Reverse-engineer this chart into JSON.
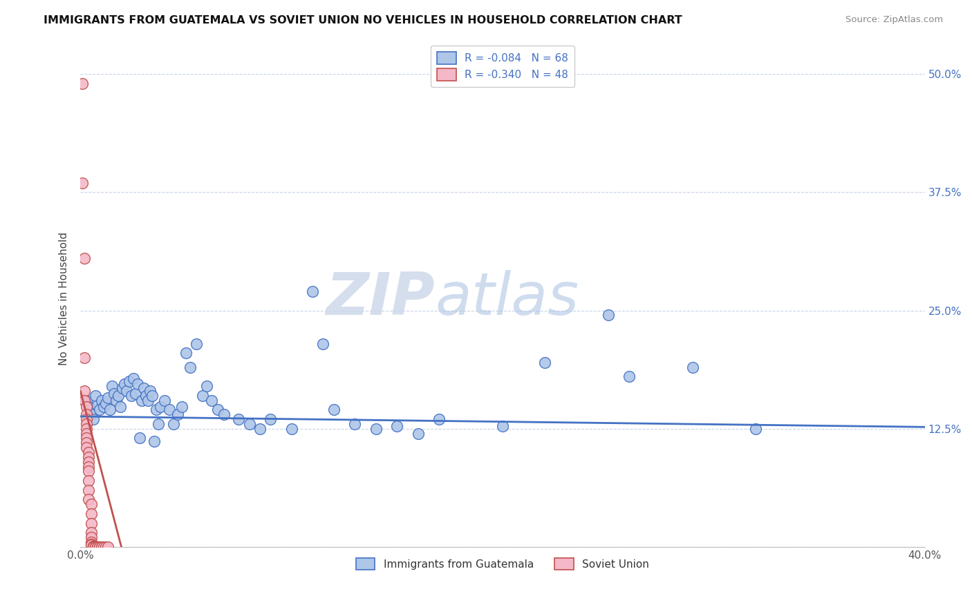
{
  "title": "IMMIGRANTS FROM GUATEMALA VS SOVIET UNION NO VEHICLES IN HOUSEHOLD CORRELATION CHART",
  "source": "Source: ZipAtlas.com",
  "ylabel": "No Vehicles in Household",
  "xlabel": "",
  "xlim": [
    0.0,
    0.4
  ],
  "ylim": [
    0.0,
    0.525
  ],
  "xticks": [
    0.0,
    0.05,
    0.1,
    0.15,
    0.2,
    0.25,
    0.3,
    0.35,
    0.4
  ],
  "xticklabels": [
    "0.0%",
    "",
    "",
    "",
    "",
    "",
    "",
    "",
    "40.0%"
  ],
  "yticks_right": [
    0.0,
    0.125,
    0.25,
    0.375,
    0.5
  ],
  "yticklabels_right": [
    "",
    "12.5%",
    "25.0%",
    "37.5%",
    "50.0%"
  ],
  "legend1_label": "R = -0.084   N = 68",
  "legend2_label": "R = -0.340   N = 48",
  "legend_bottom_label1": "Immigrants from Guatemala",
  "legend_bottom_label2": "Soviet Union",
  "guatemala_color": "#aec6e8",
  "soviet_color": "#f4b8c8",
  "guatemala_line_color": "#4472c4",
  "soviet_line_color": "#c0504d",
  "watermark_zip": "ZIP",
  "watermark_atlas": "atlas",
  "background_color": "#ffffff",
  "grid_color": "#c8d4e8",
  "guatemala_line_intercept": 0.138,
  "guatemala_line_slope": -0.028,
  "soviet_line_intercept": 0.165,
  "soviet_line_slope": -8.5,
  "guatemala_points": [
    [
      0.003,
      0.155
    ],
    [
      0.004,
      0.148
    ],
    [
      0.005,
      0.14
    ],
    [
      0.006,
      0.135
    ],
    [
      0.007,
      0.16
    ],
    [
      0.008,
      0.15
    ],
    [
      0.009,
      0.145
    ],
    [
      0.01,
      0.155
    ],
    [
      0.011,
      0.148
    ],
    [
      0.012,
      0.152
    ],
    [
      0.013,
      0.158
    ],
    [
      0.014,
      0.145
    ],
    [
      0.015,
      0.17
    ],
    [
      0.016,
      0.162
    ],
    [
      0.017,
      0.155
    ],
    [
      0.018,
      0.16
    ],
    [
      0.019,
      0.148
    ],
    [
      0.02,
      0.168
    ],
    [
      0.021,
      0.172
    ],
    [
      0.022,
      0.165
    ],
    [
      0.023,
      0.175
    ],
    [
      0.024,
      0.16
    ],
    [
      0.025,
      0.178
    ],
    [
      0.026,
      0.162
    ],
    [
      0.027,
      0.172
    ],
    [
      0.028,
      0.115
    ],
    [
      0.029,
      0.155
    ],
    [
      0.03,
      0.168
    ],
    [
      0.031,
      0.16
    ],
    [
      0.032,
      0.155
    ],
    [
      0.033,
      0.165
    ],
    [
      0.034,
      0.16
    ],
    [
      0.035,
      0.112
    ],
    [
      0.036,
      0.145
    ],
    [
      0.037,
      0.13
    ],
    [
      0.038,
      0.148
    ],
    [
      0.04,
      0.155
    ],
    [
      0.042,
      0.145
    ],
    [
      0.044,
      0.13
    ],
    [
      0.046,
      0.14
    ],
    [
      0.048,
      0.148
    ],
    [
      0.05,
      0.205
    ],
    [
      0.052,
      0.19
    ],
    [
      0.055,
      0.215
    ],
    [
      0.058,
      0.16
    ],
    [
      0.06,
      0.17
    ],
    [
      0.062,
      0.155
    ],
    [
      0.065,
      0.145
    ],
    [
      0.068,
      0.14
    ],
    [
      0.075,
      0.135
    ],
    [
      0.08,
      0.13
    ],
    [
      0.085,
      0.125
    ],
    [
      0.09,
      0.135
    ],
    [
      0.1,
      0.125
    ],
    [
      0.11,
      0.27
    ],
    [
      0.115,
      0.215
    ],
    [
      0.12,
      0.145
    ],
    [
      0.13,
      0.13
    ],
    [
      0.14,
      0.125
    ],
    [
      0.15,
      0.128
    ],
    [
      0.16,
      0.12
    ],
    [
      0.17,
      0.135
    ],
    [
      0.2,
      0.128
    ],
    [
      0.22,
      0.195
    ],
    [
      0.25,
      0.245
    ],
    [
      0.26,
      0.18
    ],
    [
      0.29,
      0.19
    ],
    [
      0.32,
      0.125
    ]
  ],
  "soviet_points": [
    [
      0.001,
      0.49
    ],
    [
      0.001,
      0.385
    ],
    [
      0.002,
      0.305
    ],
    [
      0.002,
      0.2
    ],
    [
      0.002,
      0.165
    ],
    [
      0.002,
      0.155
    ],
    [
      0.003,
      0.148
    ],
    [
      0.003,
      0.14
    ],
    [
      0.003,
      0.135
    ],
    [
      0.003,
      0.13
    ],
    [
      0.003,
      0.125
    ],
    [
      0.003,
      0.12
    ],
    [
      0.003,
      0.115
    ],
    [
      0.003,
      0.11
    ],
    [
      0.003,
      0.105
    ],
    [
      0.004,
      0.1
    ],
    [
      0.004,
      0.095
    ],
    [
      0.004,
      0.09
    ],
    [
      0.004,
      0.085
    ],
    [
      0.004,
      0.08
    ],
    [
      0.004,
      0.07
    ],
    [
      0.004,
      0.06
    ],
    [
      0.004,
      0.05
    ],
    [
      0.005,
      0.045
    ],
    [
      0.005,
      0.035
    ],
    [
      0.005,
      0.025
    ],
    [
      0.005,
      0.015
    ],
    [
      0.005,
      0.01
    ],
    [
      0.005,
      0.005
    ],
    [
      0.005,
      0.003
    ],
    [
      0.005,
      0.002
    ],
    [
      0.006,
      0.001
    ],
    [
      0.006,
      0.001
    ],
    [
      0.006,
      0.0
    ],
    [
      0.006,
      0.0
    ],
    [
      0.007,
      0.0
    ],
    [
      0.007,
      0.0
    ],
    [
      0.007,
      0.0
    ],
    [
      0.008,
      0.0
    ],
    [
      0.008,
      0.0
    ],
    [
      0.008,
      0.0
    ],
    [
      0.009,
      0.0
    ],
    [
      0.009,
      0.0
    ],
    [
      0.01,
      0.0
    ],
    [
      0.01,
      0.0
    ],
    [
      0.011,
      0.0
    ],
    [
      0.012,
      0.0
    ],
    [
      0.013,
      0.0
    ]
  ]
}
